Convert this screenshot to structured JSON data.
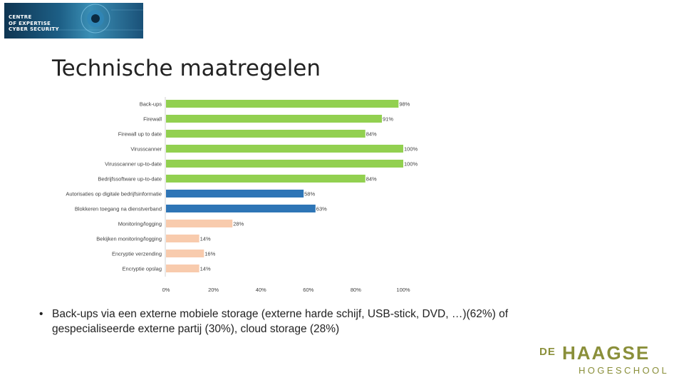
{
  "logo": {
    "lines": [
      "CENTRE",
      "OF EXPERTISE",
      "CYBER SECURITY"
    ]
  },
  "page_title": "Technische maatregelen",
  "colors": {
    "green": "#92d050",
    "blue": "#2e75b6",
    "peach": "#f8cbad",
    "brand": "#8a8f3a"
  },
  "chart_data": {
    "type": "bar",
    "orientation": "horizontal",
    "categories": [
      "Back-ups",
      "Firewall",
      "Firewall up to date",
      "Virusscanner",
      "Virusscanner up-to-date",
      "Bedrijfssoftware up-to-date",
      "Autorisaties op digitale bedrijfsinformatie",
      "Blokkeren toegang na dienstverband",
      "Monitoring/logging",
      "Bekijken monitoring/logging",
      "Encryptie verzending",
      "Encryptie opslag"
    ],
    "values": [
      98,
      91,
      84,
      100,
      100,
      84,
      58,
      63,
      28,
      14,
      16,
      14
    ],
    "value_labels": [
      "98%",
      "91%",
      "84%",
      "100%",
      "100%",
      "84%",
      "58%",
      "63%",
      "28%",
      "14%",
      "16%",
      "14%"
    ],
    "bar_colors": [
      "#92d050",
      "#92d050",
      "#92d050",
      "#92d050",
      "#92d050",
      "#92d050",
      "#2e75b6",
      "#2e75b6",
      "#f8cbad",
      "#f8cbad",
      "#f8cbad",
      "#f8cbad"
    ],
    "xlim": [
      0,
      100
    ],
    "xticks": [
      "0%",
      "20%",
      "40%",
      "60%",
      "80%",
      "100%"
    ],
    "grid": false,
    "legend": "none"
  },
  "bullet": {
    "marker": "•",
    "text": "Back-ups via een externe mobiele storage (externe harde schijf, USB-stick, DVD, …)(62%) of gespecialiseerde externe partij (30%), cloud storage (28%)"
  },
  "brand": {
    "de": "DE",
    "haagse": "HAAGSE",
    "hogeschool": "HOGESCHOOL"
  }
}
